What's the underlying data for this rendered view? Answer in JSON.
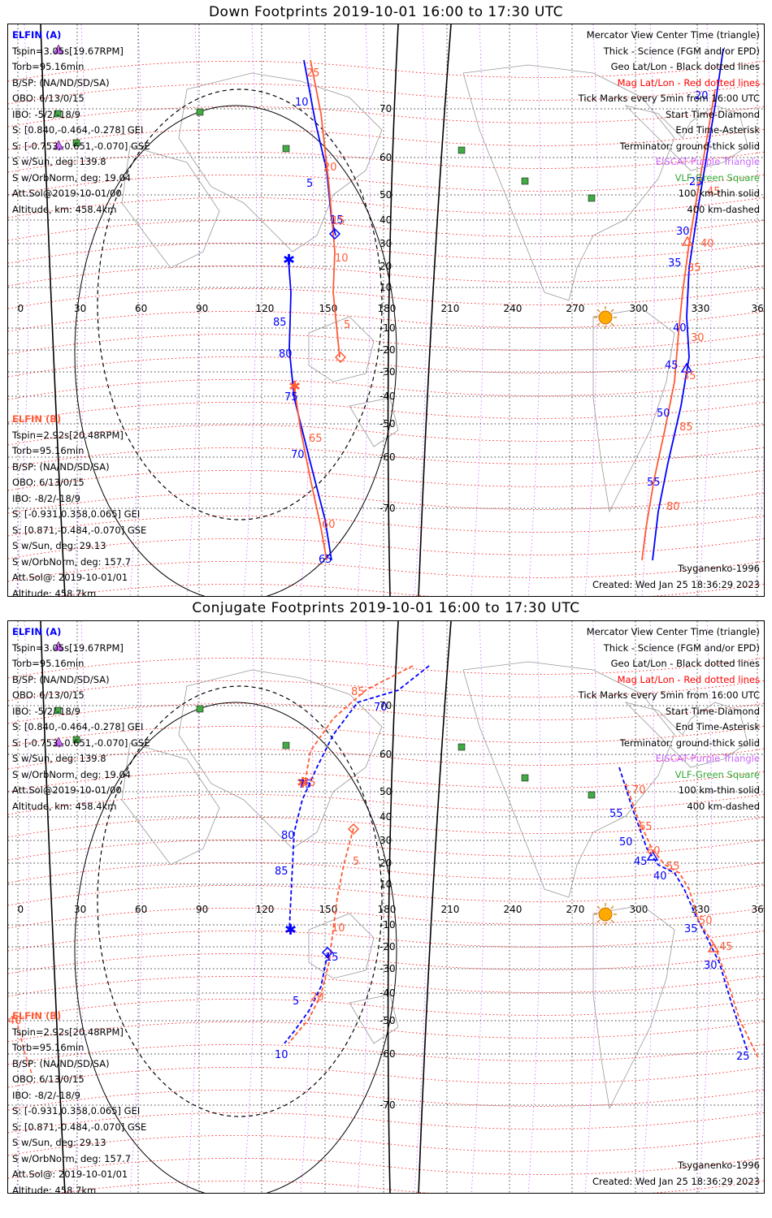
{
  "panels": [
    {
      "title": "Down Footprints 2019-10-01 16:00 to 17:30 UTC",
      "elfin_a": {
        "name": "ELFIN (A)",
        "lines": [
          "Tspin=3.05s[19.67RPM]",
          "Torb=95.16min",
          "B/SP: (NA/ND/SD/SA)",
          "OBO: 6/13/0/15",
          "IBO: -5/2/-18/9",
          "S: [0.840,-0.464,-0.278] GEI",
          "S: [-0.753,-0.651,-0.070] GSE",
          "S w/Sun, deg: 139.8",
          "S w/OrbNorm, deg: 19.04",
          "Att.Sol@2019-10-01/00",
          "Altitude, km: 458.4km"
        ]
      },
      "elfin_b": {
        "name": "ELFIN (B)",
        "lines": [
          "Tspin=2.92s[20.48RPM]",
          "Torb=95.16min",
          "B/SP: (NA/ND/SD/SA)",
          "OBO: 6/13/0/15",
          "IBO: -8/2/-18/9",
          "S: [-0.931,0.358,0.065] GEI",
          "S: [0.871,-0.484,-0.070] GSE",
          "S w/Sun, deg: 29.13",
          "S w/OrbNorm, deg: 157.7",
          "Att.Sol@: 2019-10-01/01",
          "Altitude: 458.7km"
        ]
      },
      "model": "Tsyganenko-1996",
      "created": "Created: Wed Jan 25 18:36:29 2023"
    },
    {
      "title": "Conjugate Footprints 2019-10-01 16:00 to 17:30 UTC",
      "elfin_a": {
        "name": "ELFIN (A)",
        "lines": [
          "Tspin=3.05s[19.67RPM]",
          "Torb=95.16min",
          "B/SP: (NA/ND/SD/SA)",
          "OBO: 6/13/0/15",
          "IBO: -5/2/-18/9",
          "S: [0.840,-0.464,-0.278] GEI",
          "S: [-0.753,-0.651,-0.070] GSE",
          "S w/Sun, deg: 139.8",
          "S w/OrbNorm, deg: 19.04",
          "Att.Sol@2019-10-01/00",
          "Altitude, km: 458.4km"
        ]
      },
      "elfin_b": {
        "name": "ELFIN (B)",
        "lines": [
          "Tspin=2.92s[20.48RPM]",
          "Torb=95.16min",
          "B/SP: (NA/ND/SD/SA)",
          "OBO: 6/13/0/15",
          "IBO: -8/2/-18/9",
          "S: [-0.931,0.358,0.065] GEI",
          "S: [0.871,-0.484,-0.070] GSE",
          "S w/Sun, deg: 29.13",
          "S w/OrbNorm, deg: 157.7",
          "Att.Sol@: 2019-10-01/01",
          "Altitude: 458.7km"
        ]
      },
      "model": "Tsyganenko-1996",
      "created": "Created: Wed Jan 25 18:36:29 2023"
    }
  ],
  "legend": [
    {
      "text": "Mercator View Center Time (triangle)",
      "color": "black"
    },
    {
      "text": "Thick - Science (FGM and/or EPD)",
      "color": "black"
    },
    {
      "text": "Geo Lat/Lon - Black dotted lines",
      "color": "black"
    },
    {
      "text": "Mag Lat/Lon - Red dotted lines",
      "color": "red"
    },
    {
      "text": "Tick Marks every 5min from 16:00 UTC",
      "color": "black"
    },
    {
      "text": "Start Time-Diamond",
      "color": "black"
    },
    {
      "text": "End Time-Asterisk",
      "color": "black"
    },
    {
      "text": "Terminator: ground-thick solid",
      "color": "black"
    },
    {
      "text": "EISCAT-Purple Triangle",
      "color": "purple"
    },
    {
      "text": "VLF-Green Square",
      "color": "green"
    },
    {
      "text": "100 km-thin solid",
      "color": "black"
    },
    {
      "text": "400 km-dashed",
      "color": "black"
    }
  ],
  "map_axes": {
    "lon_ticks": [
      "0",
      "30",
      "60",
      "90",
      "120",
      "150",
      "180",
      "210",
      "240",
      "270",
      "300",
      "330",
      "360"
    ],
    "lat_ticks": [
      "70",
      "60",
      "50",
      "40",
      "30",
      "20",
      "10",
      "-10",
      "-20",
      "-30",
      "-40",
      "-50",
      "-60",
      "-70"
    ]
  },
  "colors": {
    "elfin_a": "#0000ff",
    "elfin_b": "#ff5a36",
    "mag_grid": "#ff0000",
    "geo_grid": "#000000",
    "eiscat": "#cc66ff",
    "vlf": "#44aa44",
    "sun": "#ffaa00"
  },
  "track_labels": {
    "down_a": [
      "10",
      "5",
      "15",
      "20",
      "25",
      "30",
      "35",
      "40",
      "45",
      "50",
      "55",
      "85",
      "80",
      "75",
      "70",
      "65"
    ],
    "down_b": [
      "25",
      "20",
      "15",
      "10",
      "5",
      "45",
      "40",
      "35",
      "30",
      "85",
      "80",
      "75",
      "70",
      "65",
      "60"
    ],
    "conj_a": [
      "85",
      "80",
      "75",
      "70",
      "65",
      "60",
      "55",
      "50",
      "45",
      "40",
      "35",
      "30",
      "25",
      "70",
      "55",
      "50",
      "45",
      "40",
      "35",
      "30",
      "25",
      "10",
      "5",
      "15"
    ],
    "conj_b": [
      "85",
      "75",
      "70",
      "65",
      "60",
      "55",
      "50",
      "45",
      "40",
      "5",
      "10",
      "15",
      "20"
    ]
  }
}
